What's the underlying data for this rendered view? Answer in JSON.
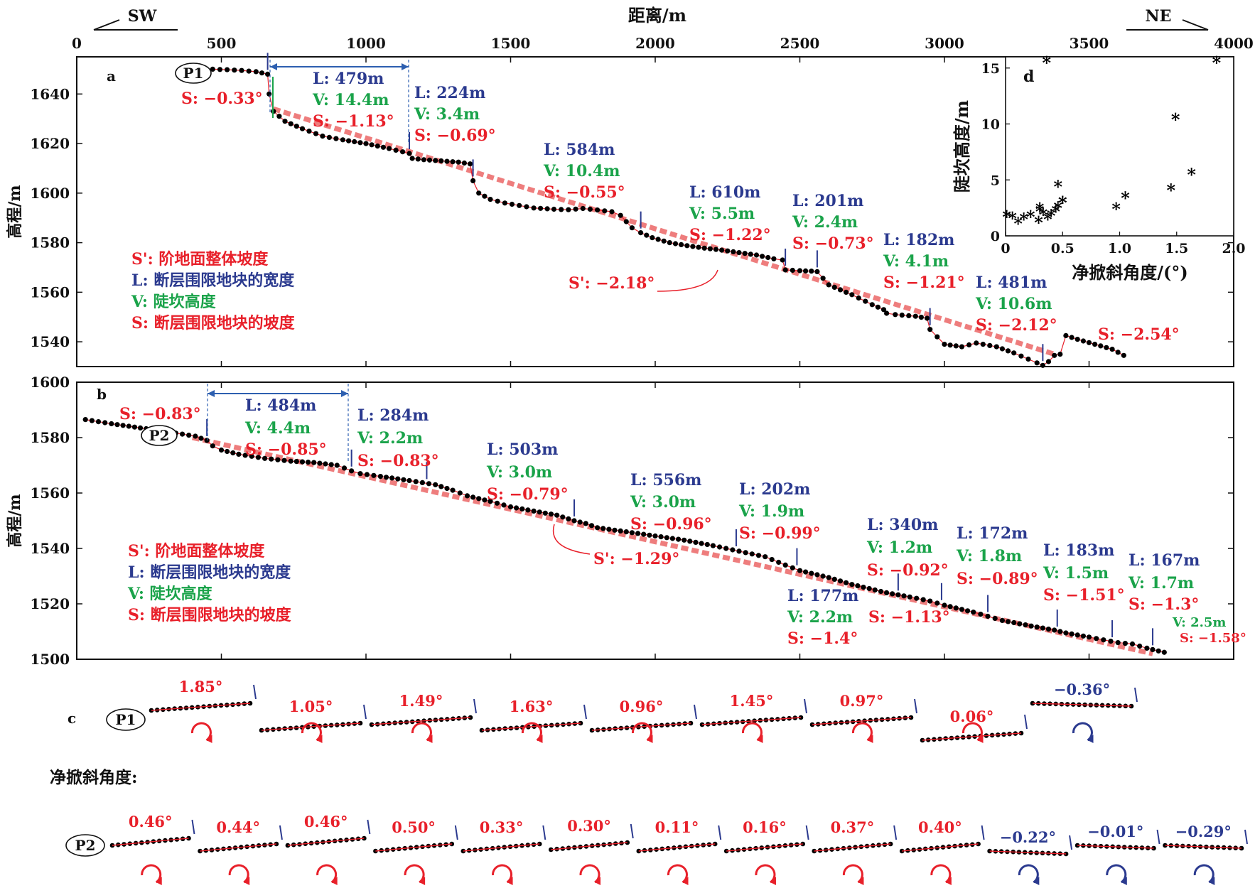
{
  "colors": {
    "red": "#e8202a",
    "blue": "#2b3a8f",
    "green": "#1aa34a",
    "trend": "#ee7d7d",
    "black": "#000000",
    "arrow_blue": "#2d5fb0"
  },
  "header": {
    "sw": "SW",
    "ne": "NE",
    "xlabel": "距离/m"
  },
  "chart_data": [
    {
      "id": "a",
      "type": "line",
      "panel_label": "a",
      "profile_label": "P1",
      "ylabel": "高程/m",
      "xlim": [
        0,
        4000
      ],
      "ylim": [
        1530,
        1655
      ],
      "x_ticks": [
        0,
        500,
        1000,
        1500,
        2000,
        2500,
        3000,
        3500,
        4000
      ],
      "y_ticks": [
        1540,
        1560,
        1580,
        1600,
        1620,
        1640
      ],
      "profile_x": [
        470,
        520,
        570,
        620,
        660,
        665,
        680,
        720,
        780,
        850,
        920,
        1000,
        1080,
        1150,
        1160,
        1200,
        1260,
        1320,
        1360,
        1370,
        1390,
        1430,
        1480,
        1530,
        1580,
        1650,
        1700,
        1750,
        1800,
        1850,
        1880,
        1920,
        1950,
        1990,
        2050,
        2110,
        2170,
        2230,
        2290,
        2350,
        2410,
        2440,
        2450,
        2500,
        2540,
        2560,
        2600,
        2680,
        2750,
        2790,
        2800,
        2830,
        2900,
        2940,
        2950,
        3000,
        3060,
        3110,
        3180,
        3240,
        3290,
        3320,
        3340,
        3360,
        3380,
        3400,
        3420,
        3460,
        3520,
        3580,
        3620
      ],
      "profile_y": [
        1650,
        1649.8,
        1649.5,
        1649,
        1648,
        1640,
        1633,
        1629,
        1626,
        1623,
        1621.5,
        1620,
        1618,
        1616,
        1614,
        1613.5,
        1613,
        1612.5,
        1611.8,
        1605,
        1600,
        1597.5,
        1596,
        1595,
        1594,
        1593.5,
        1593.3,
        1593.8,
        1593.2,
        1592.5,
        1591,
        1586,
        1584,
        1582,
        1580,
        1578.8,
        1577.8,
        1577,
        1576,
        1575,
        1573.5,
        1573,
        1569,
        1568.7,
        1568.5,
        1568.3,
        1563,
        1559,
        1555,
        1553,
        1551.5,
        1551,
        1550.3,
        1549.5,
        1545,
        1539,
        1538,
        1539.5,
        1538,
        1535.5,
        1533,
        1531.5,
        1530.5,
        1532,
        1534.5,
        1535,
        1542.5,
        1541,
        1539,
        1537,
        1534.5
      ],
      "trend": {
        "name": "S'",
        "value": "S': −2.18°",
        "x": [
          680,
          3380
        ],
        "y": [
          1634,
          1535
        ]
      },
      "fault_ticks_x": [
        660,
        1150,
        1370,
        1950,
        2450,
        2560,
        2950,
        3340
      ],
      "segments": [
        {
          "L": "L: 479m",
          "V": "V: 14.4m",
          "S": "S: −1.13°"
        },
        {
          "L": "L: 224m",
          "V": "V: 3.4m",
          "S": "S: −0.69°"
        },
        {
          "L": "L: 584m",
          "V": "V: 10.4m",
          "S": "S: −0.55°"
        },
        {
          "L": "L: 610m",
          "V": "V: 5.5m",
          "S": "S: −1.22°"
        },
        {
          "L": "L: 201m",
          "V": "V: 2.4m",
          "S": "S: −0.73°"
        },
        {
          "L": "L: 182m",
          "V": "V: 4.1m",
          "S": "S: −1.21°"
        },
        {
          "L": "L: 481m",
          "V": "V: 10.6m",
          "S": "S: −2.12°"
        }
      ],
      "first_slope": "S: −0.33°",
      "last_slope": "S: −2.54°",
      "legend": [
        "S': 阶地面整体坡度",
        "L: 断层围限地块的宽度",
        "V: 陡坎高度",
        "S: 断层围限地块的坡度"
      ]
    },
    {
      "id": "b",
      "type": "line",
      "panel_label": "b",
      "profile_label": "P2",
      "ylabel": "高程/m",
      "xlim": [
        0,
        4000
      ],
      "ylim": [
        1500,
        1600
      ],
      "x_ticks": [
        0,
        500,
        1000,
        1500,
        2000,
        2500,
        3000,
        3500,
        4000
      ],
      "y_ticks": [
        1500,
        1520,
        1540,
        1560,
        1580,
        1600
      ],
      "profile_x": [
        30,
        120,
        220,
        320,
        410,
        450,
        470,
        500,
        560,
        650,
        740,
        820,
        900,
        950,
        980,
        1050,
        1150,
        1240,
        1300,
        1350,
        1430,
        1500,
        1580,
        1660,
        1720,
        1760,
        1800,
        1900,
        2000,
        2100,
        2200,
        2290,
        2380,
        2450,
        2500,
        2600,
        2680,
        2740,
        2800,
        2880,
        2950,
        3000,
        3100,
        3150,
        3200,
        3300,
        3380,
        3420,
        3500,
        3550,
        3600,
        3650,
        3700,
        3760
      ],
      "profile_y": [
        1586.5,
        1585,
        1583.5,
        1582,
        1580.5,
        1579,
        1577,
        1575.5,
        1574,
        1572.5,
        1571.5,
        1571,
        1570,
        1568,
        1567,
        1566,
        1564.5,
        1563,
        1561,
        1559,
        1557,
        1555,
        1553.5,
        1552,
        1550,
        1549,
        1547.5,
        1546,
        1544.5,
        1543,
        1541,
        1539,
        1537,
        1534,
        1532,
        1529.5,
        1527,
        1525.5,
        1524,
        1522.5,
        1521,
        1519.5,
        1517,
        1515.5,
        1514,
        1512,
        1510.5,
        1509.5,
        1508,
        1507,
        1506,
        1505.5,
        1504,
        1502.5
      ],
      "trend": {
        "name": "S'",
        "value": "S': −1.29°",
        "x": [
          400,
          3720
        ],
        "y": [
          1580,
          1502
        ]
      },
      "fault_ticks_x": [
        450,
        950,
        1210,
        1720,
        2280,
        2490,
        2840,
        2990,
        3150,
        3390,
        3580,
        3720
      ],
      "segments": [
        {
          "L": "L: 484m",
          "V": "V: 4.4m",
          "S": "S: −0.85°"
        },
        {
          "L": "L: 284m",
          "V": "V: 2.2m",
          "S": "S: −0.83°"
        },
        {
          "L": "L: 503m",
          "V": "V: 3.0m",
          "S": "S: −0.79°"
        },
        {
          "L": "L: 556m",
          "V": "V: 3.0m",
          "S": "S: −0.96°"
        },
        {
          "L": "L: 202m",
          "V": "V: 1.9m",
          "S": "S: −0.99°"
        },
        {
          "L": "L: 177m",
          "V": "V: 2.2m",
          "S": "S: −1.4°"
        },
        {
          "L": "L: 340m",
          "V": "V: 1.2m",
          "S": "S: −0.92°"
        },
        {
          "L": "L: 172m",
          "V": "V: 1.8m",
          "S": "S: −0.89°"
        },
        {
          "L": "L: 183m",
          "V": "V: 1.5m",
          "S": "S: −1.51°"
        },
        {
          "L": "L: 167m",
          "V": "V: 1.7m",
          "S": "S: −1.3°"
        }
      ],
      "first_slope": "S: −0.83°",
      "extra_slope": "S: −1.13°",
      "last_V": "V: 2.5m",
      "last_slope": "S: −1.58°",
      "legend": [
        "S': 阶地面整体坡度",
        "L: 断层围限地块的宽度",
        "V: 陡坎高度",
        "S: 断层围限地块的坡度"
      ]
    },
    {
      "id": "d",
      "type": "scatter",
      "panel_label": "d",
      "xlabel": "净掀斜角度/(°)",
      "ylabel": "陡坎高度/m",
      "xlim": [
        0,
        2.0
      ],
      "ylim": [
        0,
        16
      ],
      "x_ticks": [
        0,
        0.5,
        1.0,
        1.5,
        2.0
      ],
      "x_tick_labels": [
        "0",
        "0.5",
        "1.0",
        "1.5",
        "2.0"
      ],
      "y_ticks": [
        0,
        5,
        10,
        15
      ],
      "x": [
        0.36,
        1.85,
        1.49,
        1.63,
        1.45,
        1.05,
        0.97,
        0.46,
        0.44,
        0.5,
        0.5,
        0.33,
        0.3,
        0.46,
        0.4,
        0.37,
        0.3,
        0.16,
        0.22,
        0.29,
        0.11,
        0.01,
        0.06
      ],
      "y": [
        15.5,
        15.5,
        10.4,
        5.5,
        4.1,
        3.4,
        2.4,
        4.4,
        2.2,
        3.0,
        3.0,
        1.9,
        2.2,
        2.5,
        1.8,
        1.5,
        2.4,
        1.5,
        1.7,
        1.2,
        1.1,
        1.7,
        1.6
      ]
    }
  ],
  "panel_c": {
    "label": "c",
    "net_tilt_title": "净掀斜角度:",
    "p1": {
      "label": "P1",
      "angles": [
        "1.85°",
        "1.05°",
        "1.49°",
        "1.63°",
        "0.96°",
        "1.45°",
        "0.97°",
        "0.06°",
        "−0.36°"
      ]
    },
    "p2": {
      "label": "P2",
      "angles": [
        "0.46°",
        "0.44°",
        "0.46°",
        "0.50°",
        "0.33°",
        "0.30°",
        "0.11°",
        "0.16°",
        "0.37°",
        "0.40°",
        "−0.22°",
        "−0.01°",
        "−0.29°"
      ]
    }
  }
}
